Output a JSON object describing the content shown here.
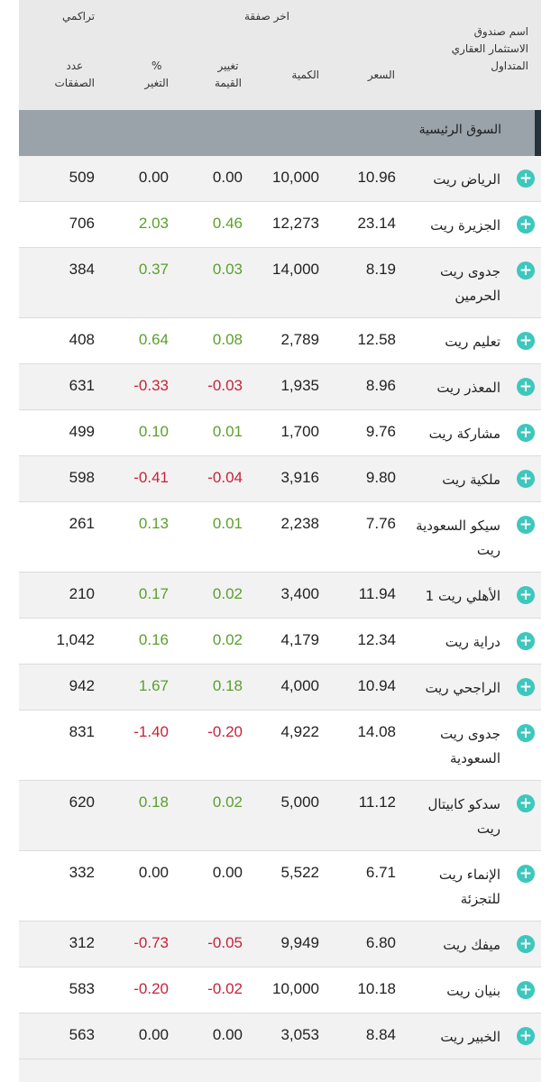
{
  "header": {
    "cumulative": "تراكمي",
    "last_trade": "اخر صفقة",
    "fund_name_line1": "اسم صندوق",
    "fund_name_line2": "الاستثمار العقاري",
    "fund_name_line3": "المتداول",
    "price": "السعر",
    "quantity": "الكمية",
    "value_change_line1": "تغيير",
    "value_change_line2": "القيمة",
    "pct_change_line1": "%",
    "pct_change_line2": "التغير",
    "deals_count_line1": "عدد",
    "deals_count_line2": "الصفقات"
  },
  "section": {
    "label": "السوق الرئيسية"
  },
  "rows": [
    {
      "name": "الرياض ريت",
      "price": "10.96",
      "qty": "10,000",
      "chg": "0.00",
      "pct": "0.00",
      "count": "509",
      "dir": "neu"
    },
    {
      "name": "الجزيرة ريت",
      "price": "23.14",
      "qty": "12,273",
      "chg": "0.46",
      "pct": "2.03",
      "count": "706",
      "dir": "pos"
    },
    {
      "name": "جدوى ريت الحرمين",
      "price": "8.19",
      "qty": "14,000",
      "chg": "0.03",
      "pct": "0.37",
      "count": "384",
      "dir": "pos"
    },
    {
      "name": "تعليم ريت",
      "price": "12.58",
      "qty": "2,789",
      "chg": "0.08",
      "pct": "0.64",
      "count": "408",
      "dir": "pos"
    },
    {
      "name": "المعذر ريت",
      "price": "8.96",
      "qty": "1,935",
      "chg": "-0.03",
      "pct": "-0.33",
      "count": "631",
      "dir": "neg"
    },
    {
      "name": "مشاركة ريت",
      "price": "9.76",
      "qty": "1,700",
      "chg": "0.01",
      "pct": "0.10",
      "count": "499",
      "dir": "pos"
    },
    {
      "name": "ملكية ريت",
      "price": "9.80",
      "qty": "3,916",
      "chg": "-0.04",
      "pct": "-0.41",
      "count": "598",
      "dir": "neg"
    },
    {
      "name": "سيكو السعودية ريت",
      "price": "7.76",
      "qty": "2,238",
      "chg": "0.01",
      "pct": "0.13",
      "count": "261",
      "dir": "pos"
    },
    {
      "name": "الأهلي ريت 1",
      "price": "11.94",
      "qty": "3,400",
      "chg": "0.02",
      "pct": "0.17",
      "count": "210",
      "dir": "pos"
    },
    {
      "name": "دراية ريت",
      "price": "12.34",
      "qty": "4,179",
      "chg": "0.02",
      "pct": "0.16",
      "count": "1,042",
      "dir": "pos"
    },
    {
      "name": "الراجحي ريت",
      "price": "10.94",
      "qty": "4,000",
      "chg": "0.18",
      "pct": "1.67",
      "count": "942",
      "dir": "pos"
    },
    {
      "name": "جدوى ريت السعودية",
      "price": "14.08",
      "qty": "4,922",
      "chg": "-0.20",
      "pct": "-1.40",
      "count": "831",
      "dir": "neg"
    },
    {
      "name": "سدكو كابيتال ريت",
      "price": "11.12",
      "qty": "5,000",
      "chg": "0.02",
      "pct": "0.18",
      "count": "620",
      "dir": "pos"
    },
    {
      "name": "الإنماء ريت للتجزئة",
      "price": "6.71",
      "qty": "5,522",
      "chg": "0.00",
      "pct": "0.00",
      "count": "332",
      "dir": "neu"
    },
    {
      "name": "ميفك ريت",
      "price": "6.80",
      "qty": "9,949",
      "chg": "-0.05",
      "pct": "-0.73",
      "count": "312",
      "dir": "neg"
    },
    {
      "name": "بنيان ريت",
      "price": "10.18",
      "qty": "10,000",
      "chg": "-0.02",
      "pct": "-0.20",
      "count": "583",
      "dir": "neg"
    },
    {
      "name": "الخبير ريت",
      "price": "8.84",
      "qty": "3,053",
      "chg": "0.00",
      "pct": "0.00",
      "count": "563",
      "dir": "neu"
    }
  ],
  "icons": {
    "expand": "plus-circle-icon"
  },
  "colors": {
    "positive": "#5aa02c",
    "negative": "#c8223a",
    "accent": "#3ec7bd",
    "section_bg": "#9aa2aa"
  }
}
